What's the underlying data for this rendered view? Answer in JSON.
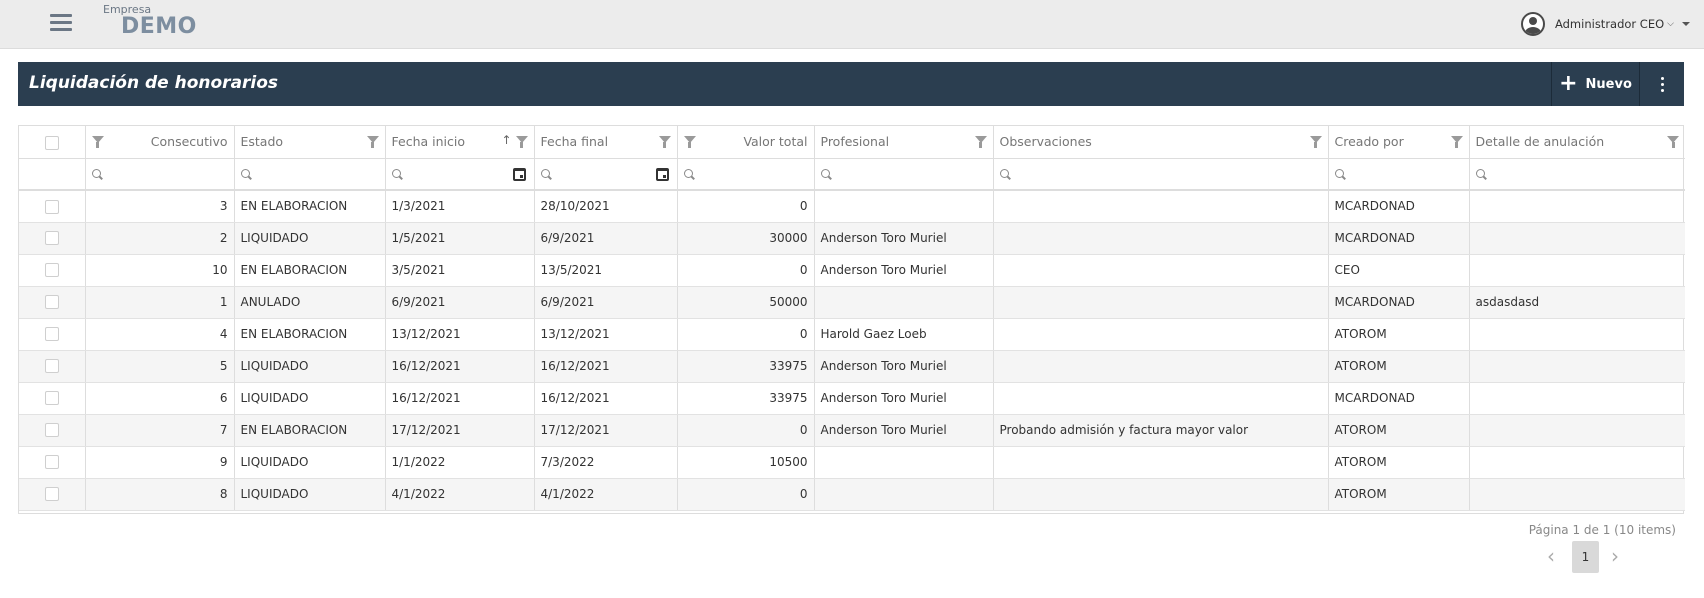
{
  "header": {
    "company_label": "Empresa",
    "company_name": "DEMO",
    "user_name": "Administrador CEO",
    "user_chevron": "⌵"
  },
  "titlebar": {
    "title": "Liquidación de honorarios",
    "new_button_icon": "+",
    "new_button_label": "Nuevo"
  },
  "grid": {
    "columns": [
      "Consecutivo",
      "Estado",
      "Fecha inicio",
      "Fecha final",
      "Valor total",
      "Profesional",
      "Observaciones",
      "Creado por",
      "Detalle de anulación"
    ],
    "sort_indicator": "↑",
    "rows": [
      {
        "consecutivo": "3",
        "estado": "EN ELABORACION",
        "fecha_inicio": "1/3/2021",
        "fecha_final": "28/10/2021",
        "valor_total": "0",
        "profesional": "",
        "observaciones": "",
        "creado_por": "MCARDONAD",
        "detalle_anulacion": ""
      },
      {
        "consecutivo": "2",
        "estado": "LIQUIDADO",
        "fecha_inicio": "1/5/2021",
        "fecha_final": "6/9/2021",
        "valor_total": "30000",
        "profesional": "Anderson Toro Muriel",
        "observaciones": "",
        "creado_por": "MCARDONAD",
        "detalle_anulacion": ""
      },
      {
        "consecutivo": "10",
        "estado": "EN ELABORACION",
        "fecha_inicio": "3/5/2021",
        "fecha_final": "13/5/2021",
        "valor_total": "0",
        "profesional": "Anderson Toro Muriel",
        "observaciones": "",
        "creado_por": "CEO",
        "detalle_anulacion": ""
      },
      {
        "consecutivo": "1",
        "estado": "ANULADO",
        "fecha_inicio": "6/9/2021",
        "fecha_final": "6/9/2021",
        "valor_total": "50000",
        "profesional": "",
        "observaciones": "",
        "creado_por": "MCARDONAD",
        "detalle_anulacion": "asdasdasd"
      },
      {
        "consecutivo": "4",
        "estado": "EN ELABORACION",
        "fecha_inicio": "13/12/2021",
        "fecha_final": "13/12/2021",
        "valor_total": "0",
        "profesional": "Harold Gaez Loeb",
        "observaciones": "",
        "creado_por": "ATOROM",
        "detalle_anulacion": ""
      },
      {
        "consecutivo": "5",
        "estado": "LIQUIDADO",
        "fecha_inicio": "16/12/2021",
        "fecha_final": "16/12/2021",
        "valor_total": "33975",
        "profesional": "Anderson Toro Muriel",
        "observaciones": "",
        "creado_por": "ATOROM",
        "detalle_anulacion": ""
      },
      {
        "consecutivo": "6",
        "estado": "LIQUIDADO",
        "fecha_inicio": "16/12/2021",
        "fecha_final": "16/12/2021",
        "valor_total": "33975",
        "profesional": "Anderson Toro Muriel",
        "observaciones": "",
        "creado_por": "MCARDONAD",
        "detalle_anulacion": ""
      },
      {
        "consecutivo": "7",
        "estado": "EN ELABORACION",
        "fecha_inicio": "17/12/2021",
        "fecha_final": "17/12/2021",
        "valor_total": "0",
        "profesional": "Anderson Toro Muriel",
        "observaciones": "Probando admisión y factura mayor valor",
        "creado_por": "ATOROM",
        "detalle_anulacion": ""
      },
      {
        "consecutivo": "9",
        "estado": "LIQUIDADO",
        "fecha_inicio": "1/1/2022",
        "fecha_final": "7/3/2022",
        "valor_total": "10500",
        "profesional": "",
        "observaciones": "",
        "creado_por": "ATOROM",
        "detalle_anulacion": ""
      },
      {
        "consecutivo": "8",
        "estado": "LIQUIDADO",
        "fecha_inicio": "4/1/2022",
        "fecha_final": "4/1/2022",
        "valor_total": "0",
        "profesional": "",
        "observaciones": "",
        "creado_por": "ATOROM",
        "detalle_anulacion": ""
      }
    ]
  },
  "pager": {
    "info": "Página 1 de 1 (10 items)",
    "current_page": "1",
    "prev_icon": "‹",
    "next_icon": "›"
  },
  "icons": {
    "menu": "hamburger-icon",
    "user": "user-circle-icon",
    "filter": "funnel-icon",
    "search": "search-icon",
    "calendar": "calendar-icon",
    "more": "vertical-dots-icon"
  },
  "colors": {
    "titlebar_bg": "#2b3e50",
    "topbar_bg": "#ececec",
    "company_text": "#7d8ea0",
    "row_alt_bg": "#f5f5f5"
  }
}
